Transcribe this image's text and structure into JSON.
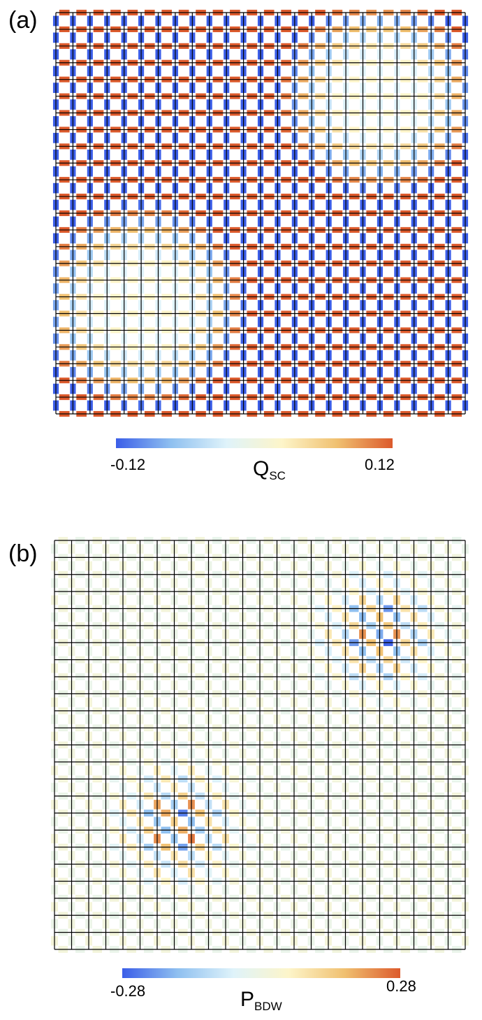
{
  "chart_data": [
    {
      "type": "heatmap",
      "panel_label": "(a)",
      "quantity": "Q",
      "quantity_sub": "SC",
      "lattice_size": 24,
      "bond_pattern": "d-wave: horizontal bonds positive, vertical bonds negative",
      "colorbar": {
        "min": -0.12,
        "max": 0.12,
        "min_label": "-0.12",
        "max_label": "0.12",
        "colors": [
          "#3b5ee8",
          "#8fc0f0",
          "#dff3fa",
          "#fdf5c9",
          "#f0c070",
          "#dc5a2c"
        ]
      },
      "amplitude_regions": [
        {
          "region": "strong background",
          "magnitude": 0.12
        },
        {
          "region": "upper-right weak patch",
          "magnitude": 0.02
        },
        {
          "region": "lower-left weak patch",
          "magnitude": 0.02
        }
      ]
    },
    {
      "type": "heatmap",
      "panel_label": "(b)",
      "quantity": "P",
      "quantity_sub": "BDW",
      "lattice_size": 24,
      "colorbar": {
        "min": -0.28,
        "max": 0.28,
        "min_label": "-0.28",
        "max_label": "0.28",
        "colors": [
          "#3b5ee8",
          "#8fc0f0",
          "#dff3fa",
          "#fdf5c9",
          "#f0c070",
          "#dc5a2c"
        ]
      },
      "amplitude_regions": [
        {
          "region": "background",
          "magnitude": 0.03
        },
        {
          "region": "upper-right cluster",
          "magnitude": 0.28
        },
        {
          "region": "lower-left cluster",
          "magnitude": 0.28
        }
      ]
    }
  ]
}
